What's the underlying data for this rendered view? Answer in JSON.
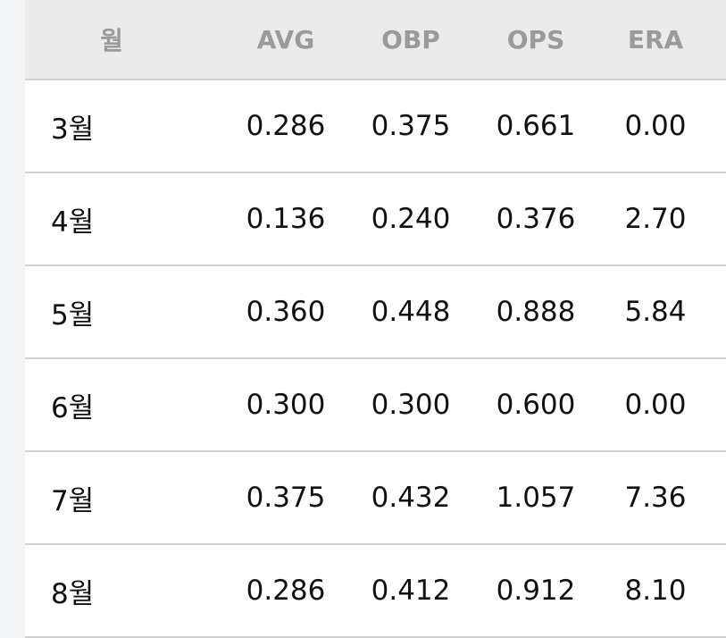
{
  "table": {
    "headers": [
      "월",
      "AVG",
      "OBP",
      "OPS",
      "ERA"
    ],
    "rows": [
      [
        "3월",
        "0.286",
        "0.375",
        "0.661",
        "0.00"
      ],
      [
        "4월",
        "0.136",
        "0.240",
        "0.376",
        "2.70"
      ],
      [
        "5월",
        "0.360",
        "0.448",
        "0.888",
        "5.84"
      ],
      [
        "6월",
        "0.300",
        "0.300",
        "0.600",
        "0.00"
      ],
      [
        "7월",
        "0.375",
        "0.432",
        "1.057",
        "7.36"
      ],
      [
        "8월",
        "0.286",
        "0.412",
        "0.912",
        "8.10"
      ]
    ]
  }
}
